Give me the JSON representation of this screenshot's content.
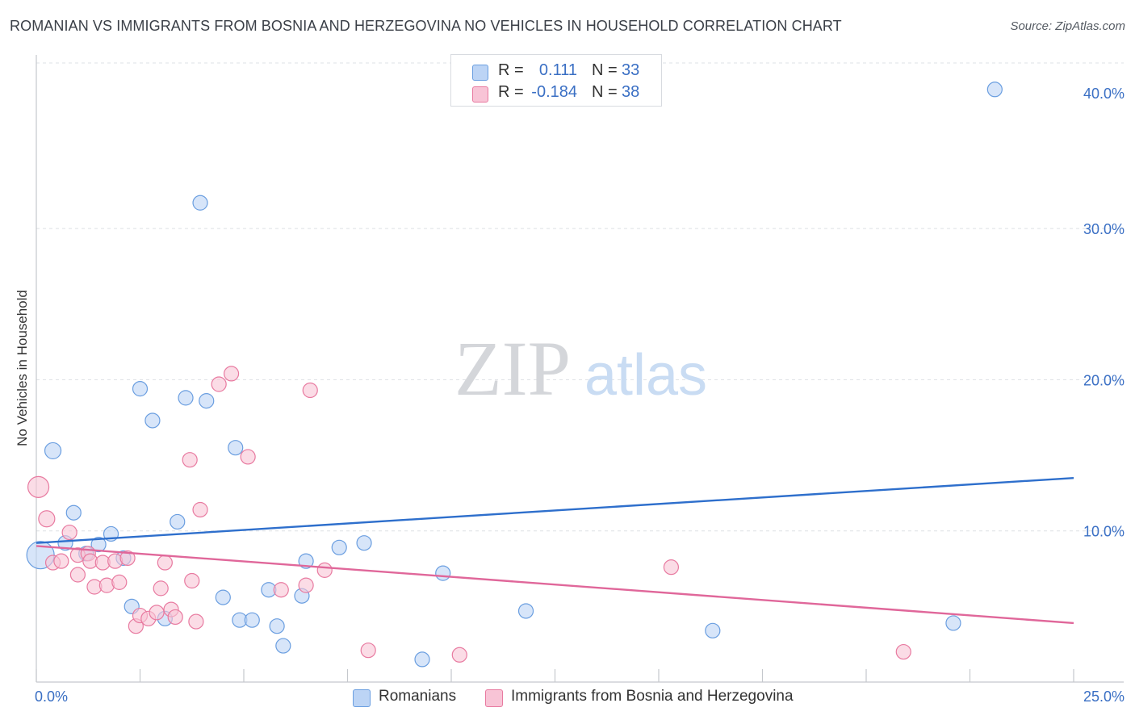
{
  "chart_data": {
    "type": "scatter",
    "title": "ROMANIAN VS IMMIGRANTS FROM BOSNIA AND HERZEGOVINA NO VEHICLES IN HOUSEHOLD CORRELATION CHART",
    "source": "Source: ZipAtlas.com",
    "ylabel": "No Vehicles in Household",
    "xlabel": "",
    "xlim": [
      0,
      25
    ],
    "ylim": [
      0,
      40
    ],
    "x_tick_labels": {
      "min": "0.0%",
      "max": "25.0%"
    },
    "y_ticks": [
      {
        "value": 10,
        "label": "10.0%"
      },
      {
        "value": 20,
        "label": "20.0%"
      },
      {
        "value": 30,
        "label": "30.0%"
      },
      {
        "value": 40,
        "label": "40.0%"
      }
    ],
    "watermark": {
      "zip": "ZIP",
      "atlas": "atlas"
    },
    "legend_stats": [
      {
        "r_label": "R =",
        "r_value": "0.111",
        "n_label": "N =",
        "n_value": "33"
      },
      {
        "r_label": "R =",
        "r_value": "-0.184",
        "n_label": "N =",
        "n_value": "38"
      }
    ],
    "series": [
      {
        "name": "Romanians",
        "color": "#6a9ee0",
        "fill": "#bcd4f5",
        "trend": {
          "start": [
            0,
            9.2
          ],
          "end": [
            25,
            13.5
          ]
        },
        "points": [
          [
            0.1,
            8.4
          ],
          [
            0.4,
            15.3
          ],
          [
            0.9,
            11.2
          ],
          [
            0.7,
            9.2
          ],
          [
            1.2,
            8.5
          ],
          [
            1.5,
            9.1
          ],
          [
            1.8,
            9.8
          ],
          [
            2.1,
            8.2
          ],
          [
            2.3,
            5.0
          ],
          [
            2.5,
            19.4
          ],
          [
            2.8,
            17.3
          ],
          [
            3.1,
            4.2
          ],
          [
            3.4,
            10.6
          ],
          [
            3.6,
            18.8
          ],
          [
            3.95,
            31.7
          ],
          [
            4.1,
            18.6
          ],
          [
            4.5,
            5.6
          ],
          [
            4.8,
            15.5
          ],
          [
            4.9,
            4.1
          ],
          [
            5.2,
            4.1
          ],
          [
            5.6,
            6.1
          ],
          [
            5.8,
            3.7
          ],
          [
            5.95,
            2.4
          ],
          [
            6.4,
            5.7
          ],
          [
            6.5,
            8.0
          ],
          [
            7.3,
            8.9
          ],
          [
            7.9,
            9.2
          ],
          [
            9.3,
            1.5
          ],
          [
            9.8,
            7.2
          ],
          [
            11.8,
            4.7
          ],
          [
            16.3,
            3.4
          ],
          [
            22.1,
            3.9
          ],
          [
            23.1,
            39.2
          ]
        ],
        "sizes": [
          34,
          20,
          18,
          18,
          18,
          18,
          18,
          18,
          18,
          18,
          18,
          18,
          18,
          18,
          18,
          18,
          18,
          18,
          18,
          18,
          18,
          18,
          18,
          18,
          18,
          18,
          18,
          18,
          18,
          18,
          18,
          18,
          18
        ]
      },
      {
        "name": "Immigrants from Bosnia and Herzegovina",
        "color": "#e87aa0",
        "fill": "#f8c4d6",
        "trend": {
          "start": [
            0,
            9.0
          ],
          "end": [
            25,
            3.9
          ]
        },
        "points": [
          [
            0.05,
            12.9
          ],
          [
            0.25,
            10.8
          ],
          [
            0.4,
            7.9
          ],
          [
            0.6,
            8.0
          ],
          [
            0.8,
            9.9
          ],
          [
            1.0,
            8.4
          ],
          [
            1.0,
            7.1
          ],
          [
            1.25,
            8.5
          ],
          [
            1.3,
            8.0
          ],
          [
            1.4,
            6.3
          ],
          [
            1.6,
            7.9
          ],
          [
            1.7,
            6.4
          ],
          [
            1.9,
            8.0
          ],
          [
            2.0,
            6.6
          ],
          [
            2.2,
            8.2
          ],
          [
            2.4,
            3.7
          ],
          [
            2.5,
            4.4
          ],
          [
            2.7,
            4.2
          ],
          [
            2.9,
            4.6
          ],
          [
            3.0,
            6.2
          ],
          [
            3.1,
            7.9
          ],
          [
            3.25,
            4.8
          ],
          [
            3.35,
            4.3
          ],
          [
            3.7,
            14.7
          ],
          [
            3.75,
            6.7
          ],
          [
            3.85,
            4.0
          ],
          [
            3.95,
            11.4
          ],
          [
            4.4,
            19.7
          ],
          [
            4.7,
            20.4
          ],
          [
            5.1,
            14.9
          ],
          [
            5.9,
            6.1
          ],
          [
            6.5,
            6.4
          ],
          [
            6.6,
            19.3
          ],
          [
            6.95,
            7.4
          ],
          [
            8.0,
            2.1
          ],
          [
            10.2,
            1.8
          ],
          [
            15.3,
            7.6
          ],
          [
            20.9,
            2.0
          ]
        ],
        "sizes": [
          26,
          20,
          18,
          18,
          18,
          18,
          18,
          18,
          18,
          18,
          18,
          18,
          18,
          18,
          18,
          18,
          18,
          18,
          18,
          18,
          18,
          18,
          18,
          18,
          18,
          18,
          18,
          18,
          18,
          18,
          18,
          18,
          18,
          18,
          18,
          18,
          18,
          18
        ]
      }
    ]
  },
  "colors": {
    "axis": "#c5c8cd",
    "grid": "#dde0e4",
    "tick_label": "#3a6fc4",
    "watermark_zip": "#d4d6da",
    "watermark_atlas": "#c9dcf3"
  }
}
